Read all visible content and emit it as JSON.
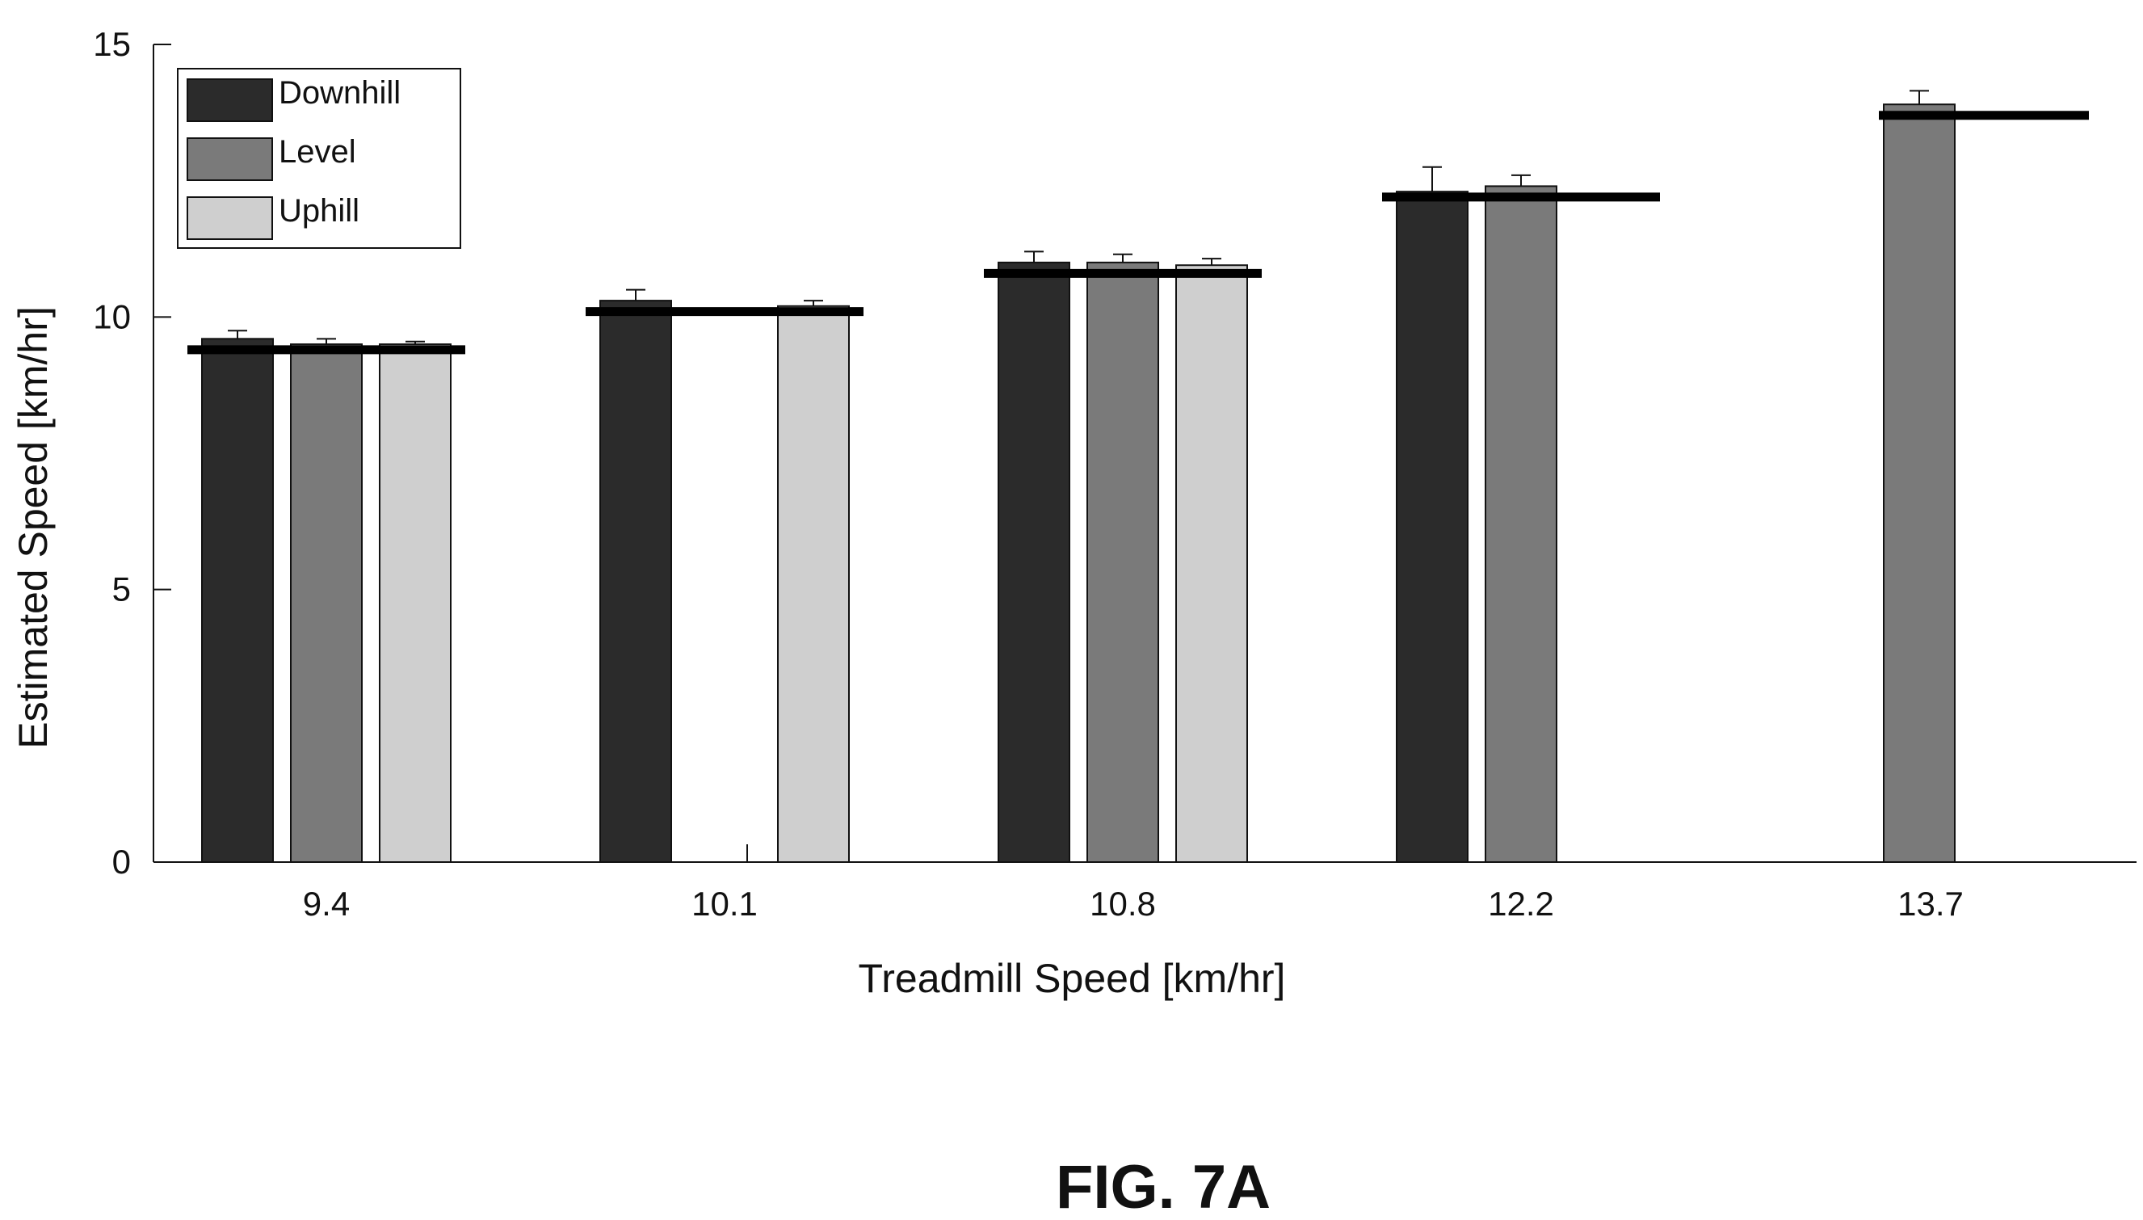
{
  "chart_data": {
    "type": "bar",
    "title": "",
    "xlabel": "Treadmill Speed [km/hr]",
    "ylabel": "Estimated Speed [km/hr]",
    "ylim": [
      0,
      15
    ],
    "yticks": [
      "0",
      "5",
      "10",
      "15"
    ],
    "categories": [
      "9.4",
      "10.1",
      "10.8",
      "12.2",
      "13.7"
    ],
    "reference_values": [
      9.4,
      10.1,
      10.8,
      12.2,
      13.7
    ],
    "legend_position": "top-left",
    "grid": false,
    "series": [
      {
        "name": "Downhill",
        "color": "#2b2b2b",
        "values": [
          9.6,
          10.3,
          11.0,
          12.3,
          null
        ],
        "errors": [
          0.15,
          0.2,
          0.2,
          0.45,
          null
        ]
      },
      {
        "name": "Level",
        "color": "#7a7a7a",
        "values": [
          9.5,
          null,
          11.0,
          12.4,
          13.9
        ],
        "errors": [
          0.1,
          null,
          0.15,
          0.2,
          0.25
        ]
      },
      {
        "name": "Uphill",
        "color": "#cfcfcf",
        "values": [
          9.5,
          10.2,
          10.95,
          null,
          null
        ],
        "errors": [
          0.05,
          0.1,
          0.12,
          null,
          null
        ]
      }
    ]
  },
  "figure": {
    "caption": "FIG.  7A"
  }
}
